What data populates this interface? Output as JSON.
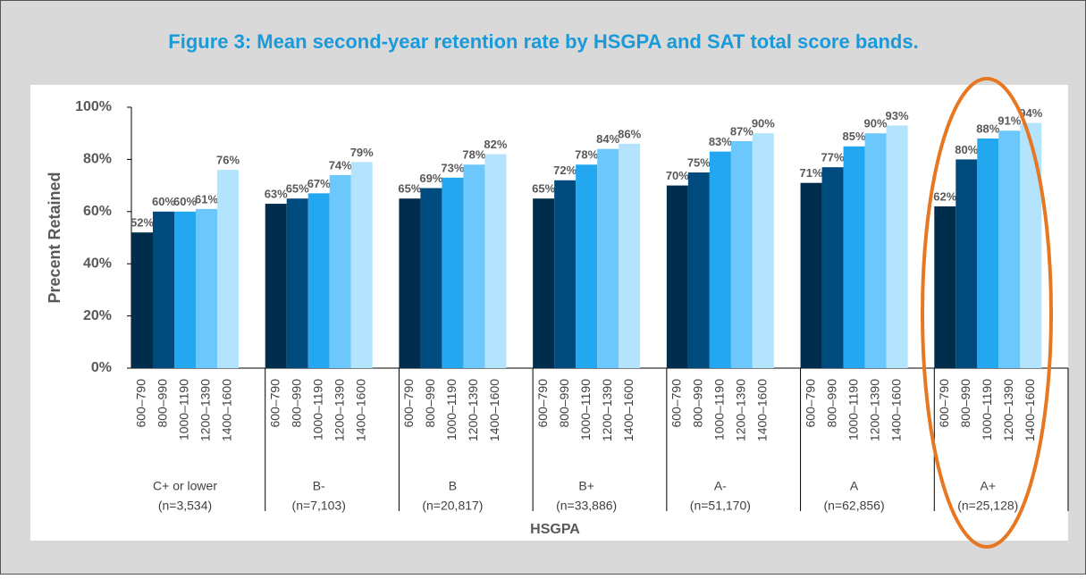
{
  "chart_data": {
    "type": "grouped_bar",
    "title": "Figure 3: Mean second-year retention rate by HSGPA and SAT total score bands.",
    "y_label": "Precent Retained",
    "x_label": "HSGPA",
    "categories": [
      "C+ or lower",
      "B-",
      "B",
      "B+",
      "A-",
      "A",
      "A+"
    ],
    "category_counts": [
      "(n=3,534)",
      "(n=7,103)",
      "(n=20,817)",
      "(n=33,886)",
      "(n=51,170)",
      "(n=62,856)",
      "(n=25,128)"
    ],
    "series": [
      {
        "name": "600–790",
        "color": "#002d4c",
        "values": [
          52,
          63,
          65,
          65,
          70,
          71,
          62
        ],
        "value_labels": [
          "52%",
          "63%",
          "65%",
          "65%",
          "70%",
          "71%",
          "62%"
        ]
      },
      {
        "name": "800–990",
        "color": "#004b7d",
        "values": [
          60,
          65,
          69,
          72,
          75,
          77,
          80
        ],
        "value_labels": [
          "60%",
          "65%",
          "69%",
          "72%",
          "75%",
          "77%",
          "80%"
        ]
      },
      {
        "name": "1000–1190",
        "color": "#22a7f0",
        "values": [
          60,
          67,
          73,
          78,
          83,
          85,
          88
        ],
        "value_labels": [
          "60%",
          "67%",
          "73%",
          "78%",
          "83%",
          "85%",
          "88%"
        ]
      },
      {
        "name": "1200–1390",
        "color": "#6cc7fc",
        "values": [
          61,
          74,
          78,
          84,
          87,
          90,
          91
        ],
        "value_labels": [
          "61%",
          "74%",
          "78%",
          "84%",
          "87%",
          "90%",
          "91%"
        ]
      },
      {
        "name": "1400–1600",
        "color": "#b3e3fd",
        "values": [
          76,
          79,
          82,
          86,
          90,
          93,
          94
        ],
        "value_labels": [
          "76%",
          "79%",
          "82%",
          "86%",
          "90%",
          "93%",
          "94%"
        ]
      }
    ],
    "ylim": [
      0,
      100
    ],
    "yticks": [
      {
        "value": 0,
        "label": "0%"
      },
      {
        "value": 20,
        "label": "20%"
      },
      {
        "value": 40,
        "label": "40%"
      },
      {
        "value": 60,
        "label": "60%"
      },
      {
        "value": 80,
        "label": "80%"
      },
      {
        "value": 100,
        "label": "100%"
      }
    ]
  }
}
